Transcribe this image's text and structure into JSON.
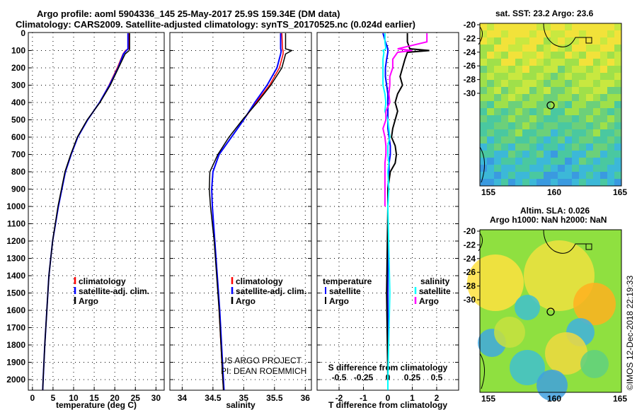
{
  "title_line1": "Argo profile: aoml 5904336_145 25-May-2017 25.9S 159.34E (DM data)",
  "title_line2": "Climatology: CARS2009. Satellite-adjusted climatology: synTS_20170525.nc (0.024d earlier)",
  "map1_title": "sat. SST: 23.2 Argo: 23.6",
  "map2_title1": "Altim. SLA: 0.026",
  "map2_title2": "Argo h1000: NaN h2000: NaN",
  "credit": "US ARGO PROJECT",
  "pi": "PI: DEAN ROEMMICH",
  "stamp": "©IMOS 12-Dec-2018 22:19:33",
  "colors": {
    "climatology": "#ff0000",
    "satellite": "#0000ff",
    "argo": "#000000",
    "sal_sat": "#00ffff",
    "sal_argo": "#ff00ff"
  },
  "chart_data": [
    {
      "type": "line",
      "name": "temperature",
      "xlabel": "temperature (deg C)",
      "xlim": [
        -1,
        32
      ],
      "ylim": [
        2060,
        0
      ],
      "xticks": [
        "0",
        "5",
        "10",
        "15",
        "20",
        "25",
        "30"
      ],
      "xtick_values": [
        0,
        5,
        10,
        15,
        20,
        25,
        30
      ],
      "yticks": [
        "0",
        "100",
        "200",
        "300",
        "400",
        "500",
        "600",
        "700",
        "800",
        "900",
        "1000",
        "1100",
        "1200",
        "1300",
        "1400",
        "1500",
        "1600",
        "1700",
        "1800",
        "1900",
        "2000"
      ],
      "legend": [
        "climatology",
        "satellite-adj. clim.",
        "Argo"
      ],
      "depth": [
        0,
        90,
        100,
        120,
        200,
        300,
        400,
        500,
        600,
        700,
        800,
        1000,
        1200,
        1400,
        1600,
        1800,
        2000,
        2060
      ],
      "series": [
        {
          "name": "climatology",
          "values": [
            23.4,
            23.4,
            22.6,
            22.0,
            20.6,
            18.6,
            16.3,
            13.4,
            11.0,
            9.4,
            8.0,
            6.3,
            4.9,
            4.0,
            3.5,
            3.0,
            2.6,
            2.5
          ]
        },
        {
          "name": "satellite-adj. clim.",
          "values": [
            23.2,
            23.2,
            22.8,
            22.1,
            20.8,
            18.7,
            16.3,
            13.4,
            11.0,
            9.4,
            8.0,
            6.3,
            4.9,
            4.0,
            3.5,
            3.0,
            2.6,
            2.5
          ]
        },
        {
          "name": "Argo",
          "values": [
            23.6,
            23.6,
            23.5,
            22.5,
            20.9,
            18.9,
            16.4,
            13.3,
            10.9,
            9.3,
            7.9,
            6.2,
            4.9,
            4.0,
            3.5,
            3.0,
            2.6,
            2.5
          ]
        }
      ]
    },
    {
      "type": "line",
      "name": "salinity",
      "xlabel": "salinity",
      "xlim": [
        33.8,
        36.1
      ],
      "ylim": [
        2060,
        0
      ],
      "xticks": [
        "34",
        "34.5",
        "35",
        "35.5",
        "36"
      ],
      "xtick_values": [
        34,
        34.5,
        35,
        35.5,
        36
      ],
      "legend": [
        "climatology",
        "satellite-adj. clim.",
        "Argo"
      ],
      "depth": [
        0,
        90,
        100,
        120,
        200,
        300,
        400,
        500,
        600,
        700,
        800,
        900,
        1000,
        1200,
        1400,
        1600,
        1800,
        2000,
        2060
      ],
      "series": [
        {
          "name": "climatology",
          "values": [
            35.62,
            35.63,
            35.64,
            35.64,
            35.58,
            35.42,
            35.2,
            35.0,
            34.8,
            34.6,
            34.5,
            34.48,
            34.49,
            34.53,
            34.57,
            34.6,
            34.63,
            34.66,
            34.67
          ]
        },
        {
          "name": "satellite-adj. clim.",
          "values": [
            35.6,
            35.6,
            35.61,
            35.6,
            35.54,
            35.38,
            35.18,
            35.0,
            34.8,
            34.6,
            34.5,
            34.48,
            34.49,
            34.53,
            34.57,
            34.61,
            34.64,
            34.67,
            34.68
          ]
        },
        {
          "name": "Argo",
          "values": [
            35.68,
            35.68,
            35.78,
            35.68,
            35.62,
            35.44,
            35.22,
            34.98,
            34.76,
            34.58,
            34.45,
            34.44,
            34.46,
            34.52,
            34.56,
            34.6,
            34.63,
            34.66,
            34.67
          ]
        }
      ]
    },
    {
      "type": "line",
      "name": "difference",
      "xlabel": "T difference from climatology",
      "xlabel2": "S difference from climatology",
      "xlim": [
        -2.9,
        2.9
      ],
      "slim": [
        -0.725,
        0.725
      ],
      "xticks": [
        "-2",
        "-1",
        "0",
        "1",
        "2"
      ],
      "xtick_values": [
        -2,
        -1,
        0,
        1,
        2
      ],
      "sticks": [
        "-0.5",
        "-0.25",
        "0",
        "0.25",
        "0.5"
      ],
      "stick_values": [
        -0.5,
        -0.25,
        0,
        0.25,
        0.5
      ],
      "legend_t": {
        "title": "temperature",
        "items": [
          "satellite",
          "Argo"
        ]
      },
      "legend_s": {
        "title": "salinity",
        "items": [
          "satellite",
          "Argo"
        ]
      },
      "depth": [
        0,
        50,
        90,
        100,
        110,
        150,
        200,
        250,
        300,
        350,
        400,
        450,
        500,
        550,
        600,
        650,
        700,
        750,
        800,
        900,
        1000,
        1500,
        2000,
        2060
      ],
      "series": [
        {
          "name": "T satellite",
          "axis": "T",
          "values": [
            -0.2,
            -0.1,
            0,
            0,
            0,
            -0.05,
            -0.1,
            -0.1,
            -0.05,
            0,
            0,
            0,
            0,
            0,
            0.05,
            0.1,
            0.1,
            0.05,
            0.05,
            0,
            0,
            0,
            0,
            0
          ]
        },
        {
          "name": "T Argo",
          "axis": "T",
          "values": [
            0.8,
            0.8,
            0.9,
            1.7,
            0.8,
            0.7,
            0.6,
            0.5,
            0.6,
            0.4,
            0.3,
            0.4,
            0.3,
            0.2,
            0.15,
            0.3,
            0.35,
            0.3,
            0.1,
            0.0,
            0,
            -0.05,
            0,
            0
          ]
        },
        {
          "name": "S satellite",
          "axis": "S",
          "values": [
            -0.03,
            -0.03,
            -0.02,
            -0.05,
            -0.04,
            -0.05,
            -0.05,
            -0.05,
            -0.05,
            -0.03,
            -0.02,
            -0.03,
            0,
            0.01,
            0.02,
            0,
            0,
            0.01,
            0,
            0.01,
            0,
            0.02,
            0,
            0
          ]
        },
        {
          "name": "S Argo",
          "axis": "S",
          "values": [
            0.4,
            0.4,
            0.1,
            0.25,
            0.1,
            0.05,
            0.05,
            0.02,
            0.02,
            0.01,
            0.02,
            -0.02,
            -0.02,
            -0.05,
            -0.03,
            -0.02,
            -0.02,
            -0.03,
            -0.03,
            -0.03,
            -0.03,
            null,
            null,
            null
          ]
        }
      ]
    },
    {
      "type": "heatmap",
      "name": "SST map",
      "xticks": [
        "155",
        "160",
        "165"
      ],
      "yticks": [
        "-20",
        "-22",
        "-24",
        "-26",
        "-28",
        "-30"
      ]
    },
    {
      "type": "heatmap",
      "name": "SLA map",
      "xticks": [
        "155",
        "160",
        "165"
      ],
      "yticks": [
        "-20",
        "-22",
        "-24",
        "-26",
        "-28",
        "-30"
      ]
    }
  ]
}
